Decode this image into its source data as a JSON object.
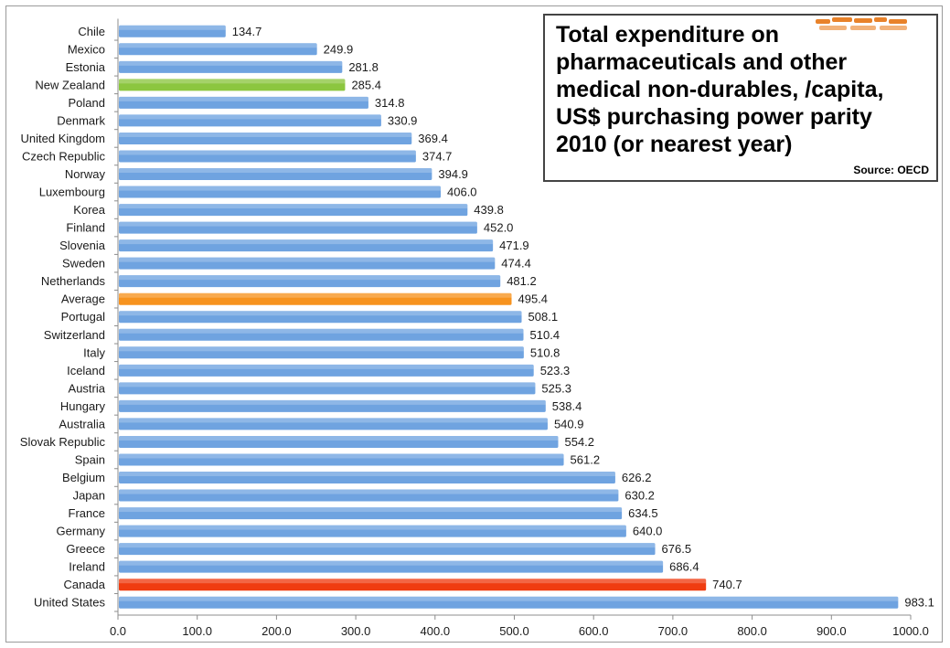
{
  "chart_data": {
    "type": "bar",
    "orientation": "horizontal",
    "categories": [
      "Chile",
      "Mexico",
      "Estonia",
      "New Zealand",
      "Poland",
      "Denmark",
      "United Kingdom",
      "Czech Republic",
      "Norway",
      "Luxembourg",
      "Korea",
      "Finland",
      "Slovenia",
      "Sweden",
      "Netherlands",
      "Average",
      "Portugal",
      "Switzerland",
      "Italy",
      "Iceland",
      "Austria",
      "Hungary",
      "Australia",
      "Slovak Republic",
      "Spain",
      "Belgium",
      "Japan",
      "France",
      "Germany",
      "Greece",
      "Ireland",
      "Canada",
      "United States"
    ],
    "values": [
      134.7,
      249.9,
      281.8,
      285.4,
      314.8,
      330.9,
      369.4,
      374.7,
      394.9,
      406.0,
      439.8,
      452.0,
      471.9,
      474.4,
      481.2,
      495.4,
      508.1,
      510.4,
      510.8,
      523.3,
      525.3,
      538.4,
      540.9,
      554.2,
      561.2,
      626.2,
      630.2,
      634.5,
      640.0,
      676.5,
      686.4,
      740.7,
      983.1
    ],
    "value_labels": [
      "134.7",
      "249.9",
      "281.8",
      "285.4",
      "314.8",
      "330.9",
      "369.4",
      "374.7",
      "394.9",
      "406.0",
      "439.8",
      "452.0",
      "471.9",
      "474.4",
      "481.2",
      "495.4",
      "508.1",
      "510.4",
      "510.8",
      "523.3",
      "525.3",
      "538.4",
      "540.9",
      "554.2",
      "561.2",
      "626.2",
      "630.2",
      "634.5",
      "640.0",
      "676.5",
      "686.4",
      "740.7",
      "983.1"
    ],
    "xlim": [
      0,
      1000
    ],
    "x_ticks": [
      "0.0",
      "100.0",
      "200.0",
      "300.0",
      "400.0",
      "500.0",
      "600.0",
      "700.0",
      "800.0",
      "900.0",
      "1000.0"
    ],
    "grid": false,
    "colors": {
      "default": "#6fa3e0",
      "highlights": {
        "New Zealand": "#8cc63f",
        "Average": "#f7931e",
        "Canada": "#f03c10"
      }
    },
    "title": "Total expenditure on\npharmaceuticals and other\nmedical non-durables, /capita,\nUS$ purchasing power parity\n2010 (or nearest year)",
    "source": "Source: OECD"
  }
}
